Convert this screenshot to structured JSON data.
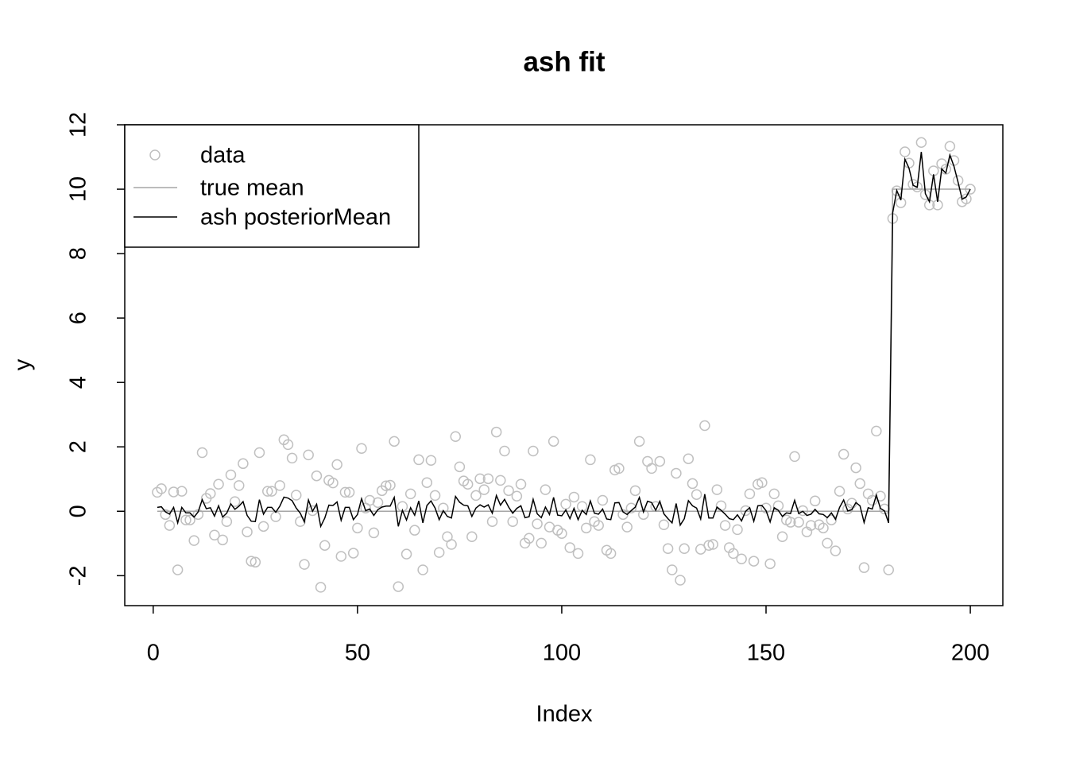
{
  "chart_data": {
    "type": "composite",
    "title": "ash fit",
    "xlabel": "Index",
    "ylabel": "y",
    "xlim": [
      -6.96,
      207.96
    ],
    "ylim": [
      -2.93,
      12.0
    ],
    "xticks": [
      0,
      50,
      100,
      150,
      200
    ],
    "yticks": [
      -2,
      0,
      2,
      4,
      6,
      8,
      10,
      12
    ],
    "legend": "top-left",
    "x": [
      1,
      2,
      3,
      4,
      5,
      6,
      7,
      8,
      9,
      10,
      11,
      12,
      13,
      14,
      15,
      16,
      17,
      18,
      19,
      20,
      21,
      22,
      23,
      24,
      25,
      26,
      27,
      28,
      29,
      30,
      31,
      32,
      33,
      34,
      35,
      36,
      37,
      38,
      39,
      40,
      41,
      42,
      43,
      44,
      45,
      46,
      47,
      48,
      49,
      50,
      51,
      52,
      53,
      54,
      55,
      56,
      57,
      58,
      59,
      60,
      61,
      62,
      63,
      64,
      65,
      66,
      67,
      68,
      69,
      70,
      71,
      72,
      73,
      74,
      75,
      76,
      77,
      78,
      79,
      80,
      81,
      82,
      83,
      84,
      85,
      86,
      87,
      88,
      89,
      90,
      91,
      92,
      93,
      94,
      95,
      96,
      97,
      98,
      99,
      100,
      101,
      102,
      103,
      104,
      105,
      106,
      107,
      108,
      109,
      110,
      111,
      112,
      113,
      114,
      115,
      116,
      117,
      118,
      119,
      120,
      121,
      122,
      123,
      124,
      125,
      126,
      127,
      128,
      129,
      130,
      131,
      132,
      133,
      134,
      135,
      136,
      137,
      138,
      139,
      140,
      141,
      142,
      143,
      144,
      145,
      146,
      147,
      148,
      149,
      150,
      151,
      152,
      153,
      154,
      155,
      156,
      157,
      158,
      159,
      160,
      161,
      162,
      163,
      164,
      165,
      166,
      167,
      168,
      169,
      170,
      171,
      172,
      173,
      174,
      175,
      176,
      177,
      178,
      179,
      180,
      181,
      182,
      183,
      184,
      185,
      186,
      187,
      188,
      189,
      190,
      191,
      192,
      193,
      194,
      195,
      196,
      197,
      198,
      199,
      200
    ],
    "series": [
      {
        "name": "data",
        "type": "scatter",
        "color": "#c0c0c0",
        "values": [
          0.59,
          0.7,
          -0.1,
          -0.44,
          0.6,
          -1.82,
          0.62,
          -0.27,
          -0.27,
          -0.91,
          -0.1,
          1.82,
          0.4,
          0.55,
          -0.74,
          0.84,
          -0.89,
          -0.32,
          1.13,
          0.3,
          0.8,
          1.48,
          -0.64,
          -1.55,
          -1.58,
          1.82,
          -0.47,
          0.62,
          0.62,
          -0.17,
          0.8,
          2.22,
          2.07,
          1.65,
          0.5,
          -0.32,
          -1.65,
          1.75,
          0.02,
          1.1,
          -2.36,
          -1.06,
          0.96,
          0.88,
          1.45,
          -1.4,
          0.59,
          0.59,
          -1.3,
          -0.52,
          1.95,
          0.1,
          0.34,
          -0.67,
          0.27,
          0.64,
          0.79,
          0.81,
          2.17,
          -2.34,
          0.15,
          -1.33,
          0.54,
          -0.59,
          1.6,
          -1.82,
          0.89,
          1.58,
          0.49,
          -1.28,
          0.1,
          -0.79,
          -1.03,
          2.32,
          1.38,
          0.94,
          0.84,
          -0.79,
          0.49,
          1.01,
          0.67,
          1.01,
          -0.32,
          2.46,
          0.96,
          1.87,
          0.64,
          -0.32,
          0.47,
          0.84,
          -0.99,
          -0.84,
          1.87,
          -0.39,
          -0.99,
          0.67,
          -0.49,
          2.17,
          -0.59,
          -0.69,
          0.22,
          -1.13,
          0.44,
          -1.31,
          0.15,
          -0.52,
          1.6,
          -0.32,
          -0.44,
          0.34,
          -1.21,
          -1.31,
          1.28,
          1.33,
          -0.1,
          -0.49,
          0.1,
          0.64,
          2.17,
          -0.1,
          1.55,
          1.33,
          0.15,
          1.55,
          -0.42,
          -1.16,
          -1.82,
          1.18,
          -2.14,
          -1.16,
          1.63,
          0.86,
          0.52,
          -1.18,
          2.66,
          -1.06,
          -1.03,
          0.67,
          0.17,
          -0.44,
          -1.13,
          -1.31,
          -0.57,
          -1.48,
          0.02,
          0.54,
          -1.55,
          0.84,
          0.89,
          0.1,
          -1.63,
          0.54,
          0.17,
          -0.79,
          -0.27,
          -0.34,
          1.7,
          -0.34,
          0.02,
          -0.64,
          -0.44,
          0.32,
          -0.42,
          -0.52,
          -0.99,
          -0.27,
          -1.23,
          0.62,
          1.77,
          0.07,
          0.25,
          1.35,
          0.86,
          -1.75,
          0.54,
          0.34,
          2.49,
          0.47,
          0.07,
          -1.82,
          9.09,
          9.95,
          9.58,
          11.16,
          10.81,
          10.15,
          10.07,
          11.45,
          9.83,
          9.51,
          10.57,
          9.51,
          10.79,
          10.62,
          11.33,
          10.89,
          10.27,
          9.61,
          9.7,
          10.0
        ]
      },
      {
        "name": "true mean",
        "type": "line",
        "color": "#a6a6a6",
        "values": [
          0,
          0,
          0,
          0,
          0,
          0,
          0,
          0,
          0,
          0,
          0,
          0,
          0,
          0,
          0,
          0,
          0,
          0,
          0,
          0,
          0,
          0,
          0,
          0,
          0,
          0,
          0,
          0,
          0,
          0,
          0,
          0,
          0,
          0,
          0,
          0,
          0,
          0,
          0,
          0,
          0,
          0,
          0,
          0,
          0,
          0,
          0,
          0,
          0,
          0,
          0,
          0,
          0,
          0,
          0,
          0,
          0,
          0,
          0,
          0,
          0,
          0,
          0,
          0,
          0,
          0,
          0,
          0,
          0,
          0,
          0,
          0,
          0,
          0,
          0,
          0,
          0,
          0,
          0,
          0,
          0,
          0,
          0,
          0,
          0,
          0,
          0,
          0,
          0,
          0,
          0,
          0,
          0,
          0,
          0,
          0,
          0,
          0,
          0,
          0,
          0,
          0,
          0,
          0,
          0,
          0,
          0,
          0,
          0,
          0,
          0,
          0,
          0,
          0,
          0,
          0,
          0,
          0,
          0,
          0,
          0,
          0,
          0,
          0,
          0,
          0,
          0,
          0,
          0,
          0,
          0,
          0,
          0,
          0,
          0,
          0,
          0,
          0,
          0,
          0,
          0,
          0,
          0,
          0,
          0,
          0,
          0,
          0,
          0,
          0,
          0,
          0,
          0,
          0,
          0,
          0,
          0,
          0,
          0,
          0,
          0,
          0,
          0,
          0,
          0,
          0,
          0,
          0,
          0,
          0,
          0,
          0,
          0,
          0,
          0,
          0,
          0,
          0,
          0,
          0,
          10,
          10,
          10,
          10,
          10,
          10,
          10,
          10,
          10,
          10,
          10,
          10,
          10,
          10,
          10,
          10,
          10,
          10,
          10,
          10
        ]
      },
      {
        "name": "ash posteriorMean",
        "type": "line",
        "color": "#000000",
        "values": [
          0.12,
          0.14,
          -0.02,
          -0.09,
          0.12,
          -0.36,
          0.12,
          -0.05,
          -0.05,
          -0.18,
          -0.02,
          0.36,
          0.08,
          0.11,
          -0.15,
          0.17,
          -0.18,
          -0.06,
          0.23,
          0.06,
          0.16,
          0.3,
          -0.13,
          -0.31,
          -0.32,
          0.36,
          -0.09,
          0.12,
          0.12,
          -0.03,
          0.16,
          0.44,
          0.41,
          0.33,
          0.1,
          -0.06,
          -0.33,
          0.35,
          0,
          0.22,
          -0.47,
          -0.21,
          0.19,
          0.18,
          0.29,
          -0.28,
          0.12,
          0.12,
          -0.26,
          -0.1,
          0.39,
          0.02,
          0.07,
          -0.13,
          0.05,
          0.13,
          0.16,
          0.16,
          0.43,
          -0.47,
          0.03,
          -0.27,
          0.11,
          -0.12,
          0.32,
          -0.36,
          0.18,
          0.32,
          0.1,
          -0.26,
          0.02,
          -0.16,
          -0.21,
          0.46,
          0.28,
          0.19,
          0.17,
          -0.16,
          0.1,
          0.2,
          0.13,
          0.2,
          -0.06,
          0.49,
          0.19,
          0.37,
          0.13,
          -0.06,
          0.09,
          0.17,
          -0.2,
          -0.17,
          0.37,
          -0.08,
          -0.2,
          0.13,
          -0.1,
          0.43,
          -0.12,
          -0.14,
          0.04,
          -0.23,
          0.09,
          -0.26,
          0.03,
          -0.1,
          0.32,
          -0.06,
          -0.09,
          0.07,
          -0.24,
          -0.26,
          0.26,
          0.27,
          -0.02,
          -0.1,
          0.02,
          0.13,
          0.43,
          -0.02,
          0.31,
          0.27,
          0.03,
          0.31,
          -0.08,
          -0.23,
          -0.36,
          0.24,
          -0.43,
          -0.23,
          0.33,
          0.17,
          0.1,
          -0.24,
          0.53,
          -0.21,
          -0.21,
          0.13,
          0.03,
          -0.09,
          -0.23,
          -0.26,
          -0.11,
          -0.3,
          0,
          0.11,
          -0.31,
          0.17,
          0.18,
          0.02,
          -0.33,
          0.11,
          0.03,
          -0.16,
          -0.05,
          -0.07,
          0.34,
          -0.07,
          0,
          -0.13,
          -0.09,
          0.06,
          -0.08,
          -0.1,
          -0.2,
          -0.05,
          -0.25,
          0.12,
          0.35,
          0.01,
          0.05,
          0.27,
          0.17,
          -0.35,
          0.11,
          0.07,
          0.5,
          0.09,
          0.01,
          -0.36,
          9.27,
          9.96,
          9.66,
          10.93,
          10.65,
          10.12,
          10.06,
          11.16,
          9.86,
          9.61,
          10.46,
          9.61,
          10.63,
          10.5,
          11.06,
          10.71,
          10.22,
          9.69,
          9.76,
          10.0
        ]
      }
    ]
  }
}
